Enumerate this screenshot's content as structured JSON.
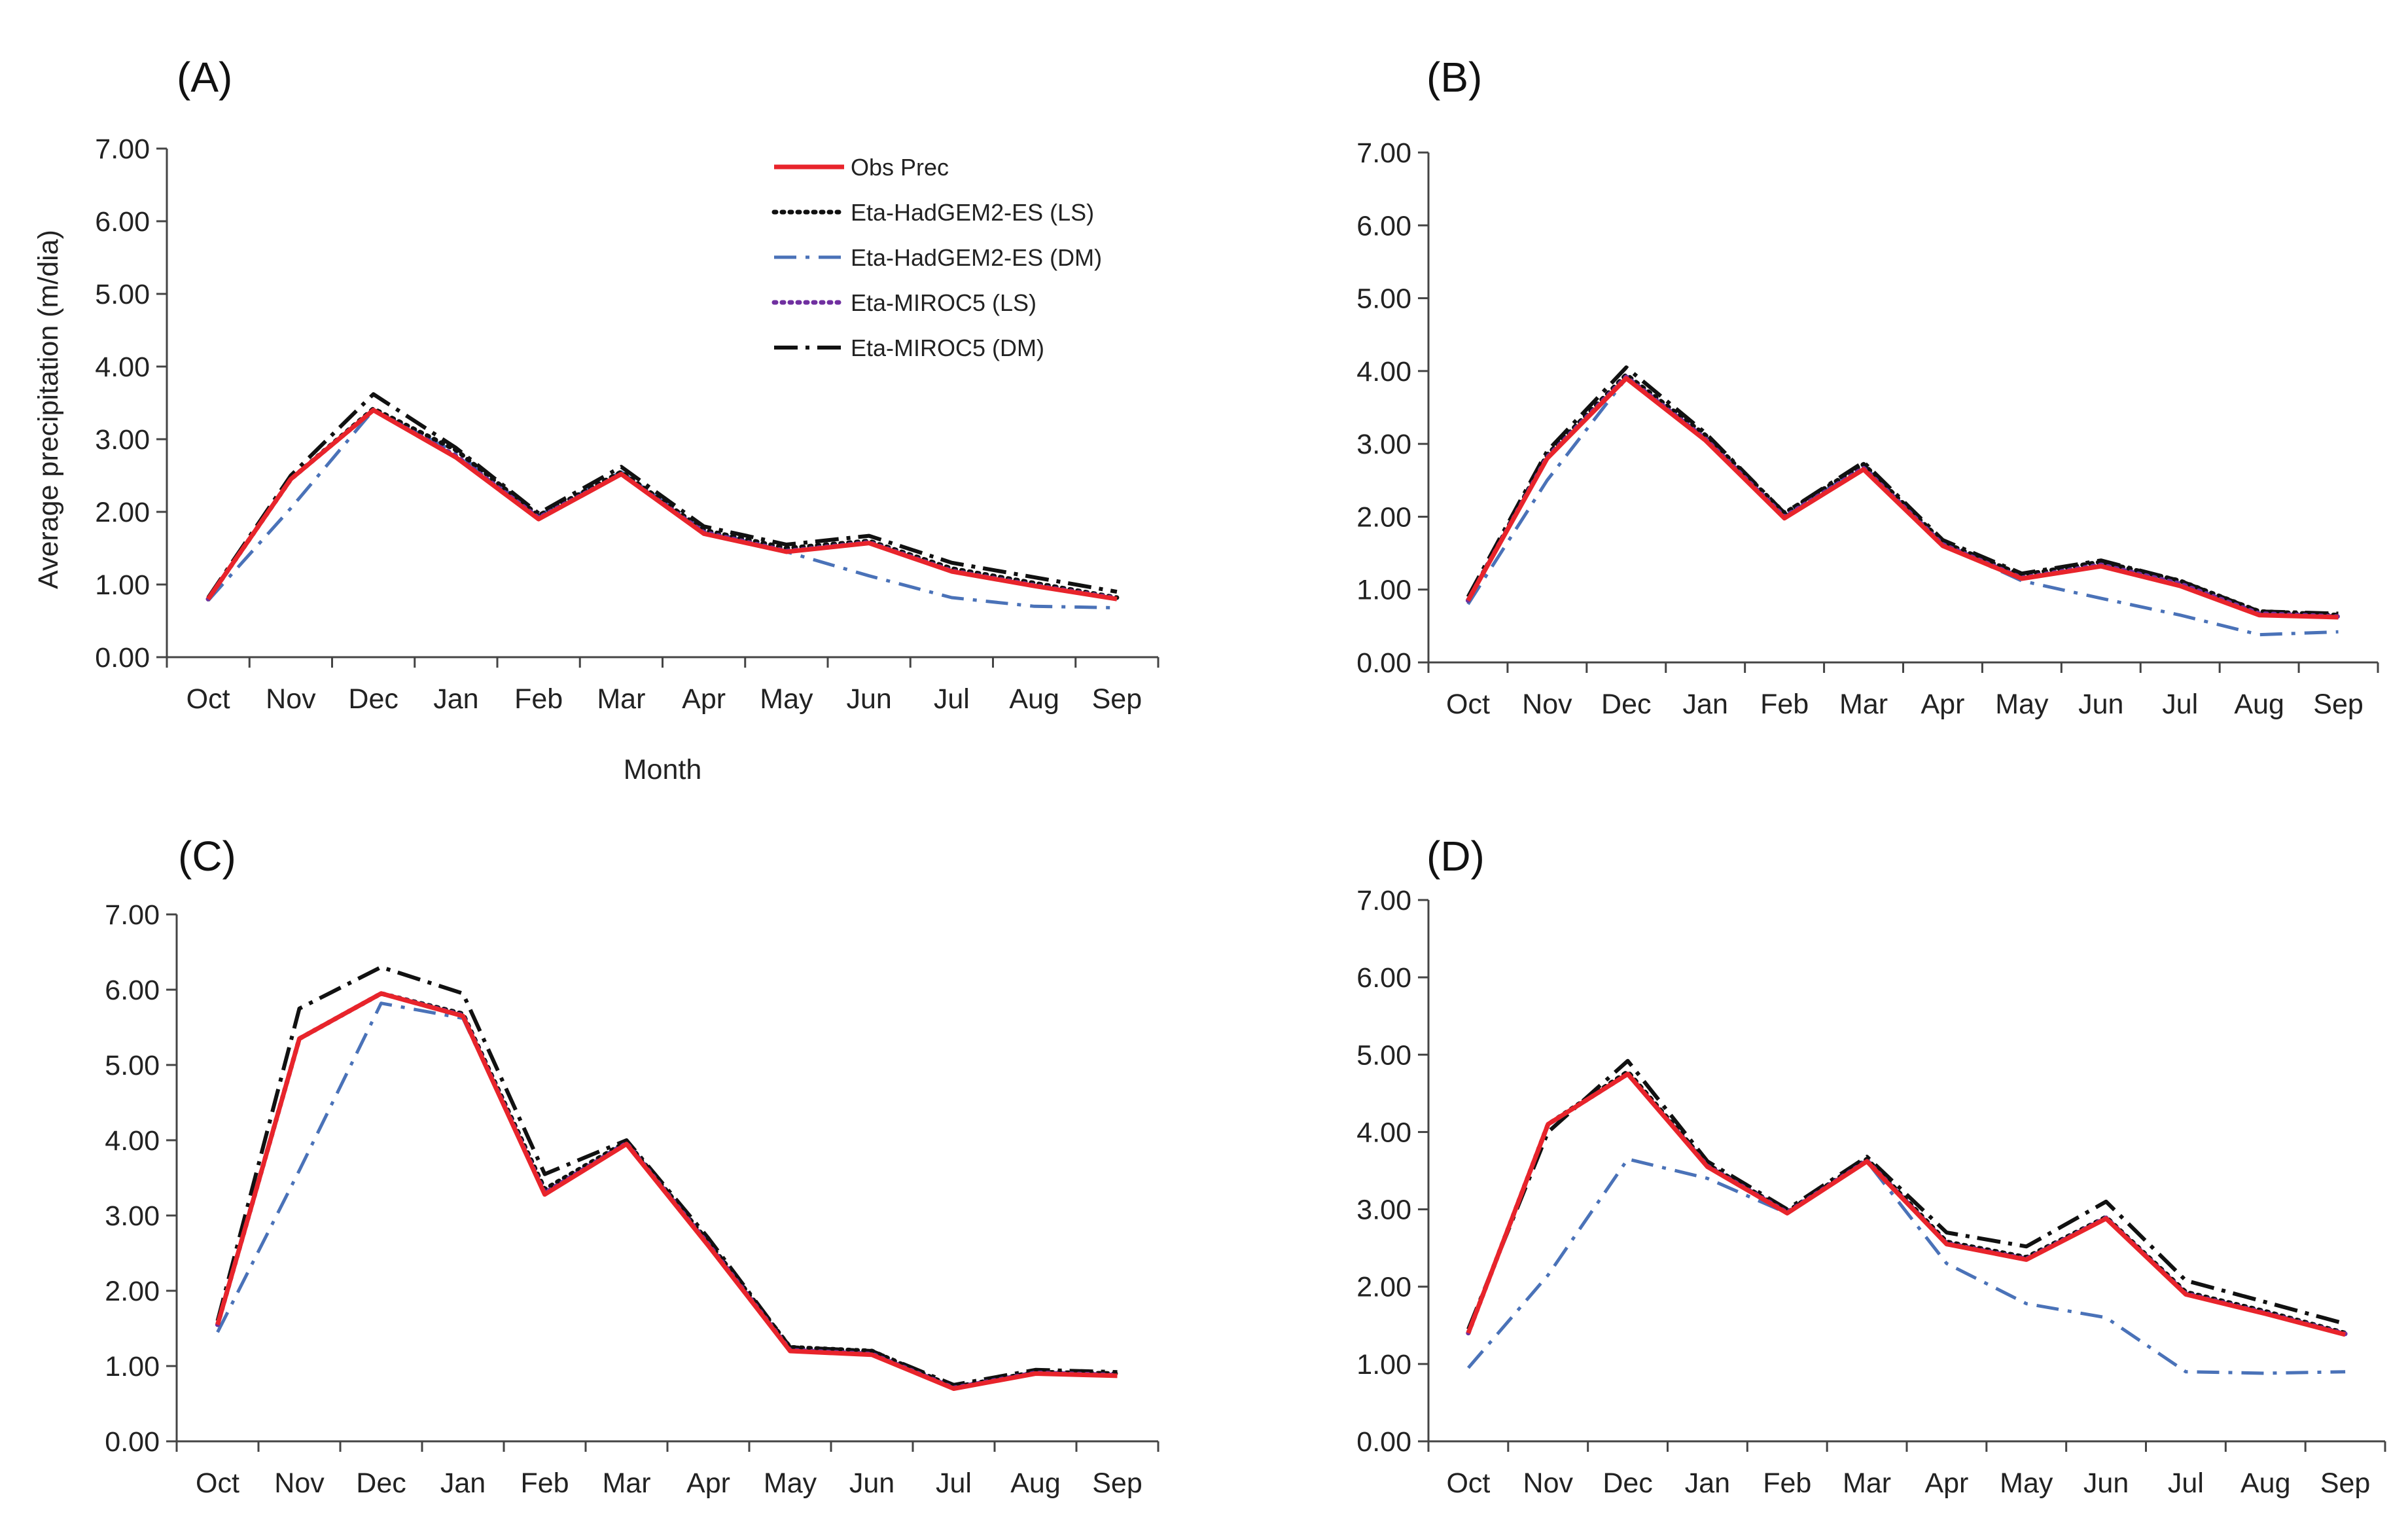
{
  "chart_data": [
    {
      "type": "line",
      "panel": "(A)",
      "categories": [
        "Oct",
        "Nov",
        "Dec",
        "Jan",
        "Feb",
        "Mar",
        "Apr",
        "May",
        "Jun",
        "Jul",
        "Aug",
        "Sep"
      ],
      "xlabel": "Month",
      "ylabel": "Average precipitation (m/dia)",
      "ylim": [
        0,
        7
      ],
      "yticks": [
        "0.00",
        "1.00",
        "2.00",
        "3.00",
        "4.00",
        "5.00",
        "6.00",
        "7.00"
      ],
      "legend": "top-right",
      "series": [
        {
          "name": "Obs Prec",
          "color": "#e8242b",
          "dash": "solid",
          "values": [
            0.8,
            2.45,
            3.4,
            2.75,
            1.9,
            2.52,
            1.7,
            1.45,
            1.57,
            1.18,
            0.98,
            0.8
          ]
        },
        {
          "name": "Eta-HadGEM2-ES (LS)",
          "color": "#111111",
          "dash": "dot",
          "values": [
            0.8,
            2.45,
            3.42,
            2.85,
            1.95,
            2.55,
            1.75,
            1.5,
            1.6,
            1.22,
            1.02,
            0.82
          ]
        },
        {
          "name": "Eta-HadGEM2-ES (DM)",
          "color": "#4a72b8",
          "dash": "dashdot",
          "values": [
            0.78,
            2.05,
            3.4,
            2.82,
            1.95,
            2.55,
            1.75,
            1.45,
            1.12,
            0.82,
            0.7,
            0.68
          ]
        },
        {
          "name": "Eta-MIROC5 (LS)",
          "color": "#7030a0",
          "dash": "dot",
          "values": [
            0.8,
            2.45,
            3.4,
            2.77,
            1.92,
            2.52,
            1.72,
            1.46,
            1.58,
            1.19,
            0.99,
            0.81
          ]
        },
        {
          "name": "Eta-MIROC5 (DM)",
          "color": "#111111",
          "dash": "longdashdot",
          "values": [
            0.82,
            2.5,
            3.62,
            2.88,
            1.98,
            2.62,
            1.8,
            1.55,
            1.67,
            1.3,
            1.1,
            0.9
          ]
        }
      ]
    },
    {
      "type": "line",
      "panel": "(B)",
      "categories": [
        "Oct",
        "Nov",
        "Dec",
        "Jan",
        "Feb",
        "Mar",
        "Apr",
        "May",
        "Jun",
        "Jul",
        "Aug",
        "Sep"
      ],
      "ylim": [
        0,
        7
      ],
      "yticks": [
        "0.00",
        "1.00",
        "2.00",
        "3.00",
        "4.00",
        "5.00",
        "6.00",
        "7.00"
      ],
      "series": [
        {
          "name": "Obs Prec",
          "color": "#e8242b",
          "dash": "solid",
          "values": [
            0.85,
            2.8,
            3.9,
            3.05,
            1.98,
            2.65,
            1.6,
            1.15,
            1.32,
            1.05,
            0.65,
            0.62
          ]
        },
        {
          "name": "Eta-HadGEM2-ES (LS)",
          "color": "#111111",
          "dash": "dot",
          "values": [
            0.85,
            2.85,
            3.95,
            3.12,
            2.05,
            2.72,
            1.65,
            1.2,
            1.38,
            1.12,
            0.7,
            0.65
          ]
        },
        {
          "name": "Eta-HadGEM2-ES (DM)",
          "color": "#4a72b8",
          "dash": "dashdot",
          "values": [
            0.8,
            2.5,
            3.9,
            3.05,
            2.0,
            2.7,
            1.62,
            1.12,
            0.88,
            0.65,
            0.38,
            0.42
          ]
        },
        {
          "name": "Eta-MIROC5 (LS)",
          "color": "#7030a0",
          "dash": "dot",
          "values": [
            0.85,
            2.82,
            3.92,
            3.07,
            2.0,
            2.67,
            1.62,
            1.16,
            1.34,
            1.08,
            0.67,
            0.63
          ]
        },
        {
          "name": "Eta-MIROC5 (DM)",
          "color": "#111111",
          "dash": "longdashdot",
          "values": [
            0.9,
            2.9,
            4.05,
            3.15,
            2.05,
            2.75,
            1.68,
            1.22,
            1.4,
            1.12,
            0.7,
            0.67
          ]
        }
      ]
    },
    {
      "type": "line",
      "panel": "(C)",
      "categories": [
        "Oct",
        "Nov",
        "Dec",
        "Jan",
        "Feb",
        "Mar",
        "Apr",
        "May",
        "Jun",
        "Jul",
        "Aug",
        "Sep"
      ],
      "ylim": [
        0,
        7
      ],
      "yticks": [
        "0.00",
        "1.00",
        "2.00",
        "3.00",
        "4.00",
        "5.00",
        "6.00",
        "7.00"
      ],
      "series": [
        {
          "name": "Obs Prec",
          "color": "#e8242b",
          "dash": "solid",
          "values": [
            1.55,
            5.35,
            5.95,
            5.65,
            3.28,
            3.95,
            2.6,
            1.2,
            1.15,
            0.7,
            0.9,
            0.87
          ]
        },
        {
          "name": "Eta-HadGEM2-ES (LS)",
          "color": "#111111",
          "dash": "dot",
          "values": [
            1.55,
            5.35,
            5.95,
            5.68,
            3.35,
            3.98,
            2.65,
            1.25,
            1.2,
            0.72,
            0.92,
            0.9
          ]
        },
        {
          "name": "Eta-HadGEM2-ES (DM)",
          "color": "#4a72b8",
          "dash": "dashdot",
          "values": [
            1.45,
            3.6,
            5.82,
            5.62,
            3.3,
            3.98,
            2.62,
            1.22,
            1.17,
            0.7,
            0.9,
            0.88
          ]
        },
        {
          "name": "Eta-MIROC5 (LS)",
          "color": "#7030a0",
          "dash": "dot",
          "values": [
            1.55,
            5.35,
            5.95,
            5.66,
            3.3,
            3.96,
            2.62,
            1.21,
            1.16,
            0.71,
            0.91,
            0.88
          ]
        },
        {
          "name": "Eta-MIROC5 (DM)",
          "color": "#111111",
          "dash": "longdashdot",
          "values": [
            1.6,
            5.75,
            6.3,
            5.95,
            3.55,
            4.0,
            2.7,
            1.25,
            1.2,
            0.75,
            0.95,
            0.92
          ]
        }
      ]
    },
    {
      "type": "line",
      "panel": "(D)",
      "categories": [
        "Oct",
        "Nov",
        "Dec",
        "Jan",
        "Feb",
        "Mar",
        "Apr",
        "May",
        "Jun",
        "Jul",
        "Aug",
        "Sep"
      ],
      "ylim": [
        0,
        7
      ],
      "yticks": [
        "0.00",
        "1.00",
        "2.00",
        "3.00",
        "4.00",
        "5.00",
        "6.00",
        "7.00"
      ],
      "series": [
        {
          "name": "Obs Prec",
          "color": "#e8242b",
          "dash": "solid",
          "values": [
            1.4,
            4.1,
            4.75,
            3.55,
            2.95,
            3.62,
            2.55,
            2.35,
            2.88,
            1.9,
            1.65,
            1.38
          ]
        },
        {
          "name": "Eta-HadGEM2-ES (LS)",
          "color": "#111111",
          "dash": "dot",
          "values": [
            1.4,
            4.1,
            4.78,
            3.58,
            2.97,
            3.65,
            2.58,
            2.38,
            2.9,
            1.93,
            1.68,
            1.4
          ]
        },
        {
          "name": "Eta-HadGEM2-ES (DM)",
          "color": "#4a72b8",
          "dash": "dashdot",
          "values": [
            0.95,
            2.15,
            3.65,
            3.4,
            2.95,
            3.62,
            2.3,
            1.78,
            1.6,
            0.9,
            0.88,
            0.9
          ]
        },
        {
          "name": "Eta-MIROC5 (LS)",
          "color": "#7030a0",
          "dash": "dot",
          "values": [
            1.4,
            4.1,
            4.75,
            3.56,
            2.96,
            3.63,
            2.56,
            2.36,
            2.89,
            1.91,
            1.66,
            1.39
          ]
        },
        {
          "name": "Eta-MIROC5 (DM)",
          "color": "#111111",
          "dash": "longdashdot",
          "values": [
            1.45,
            4.0,
            4.92,
            3.62,
            3.0,
            3.68,
            2.7,
            2.52,
            3.1,
            2.08,
            1.8,
            1.52
          ]
        }
      ]
    }
  ]
}
